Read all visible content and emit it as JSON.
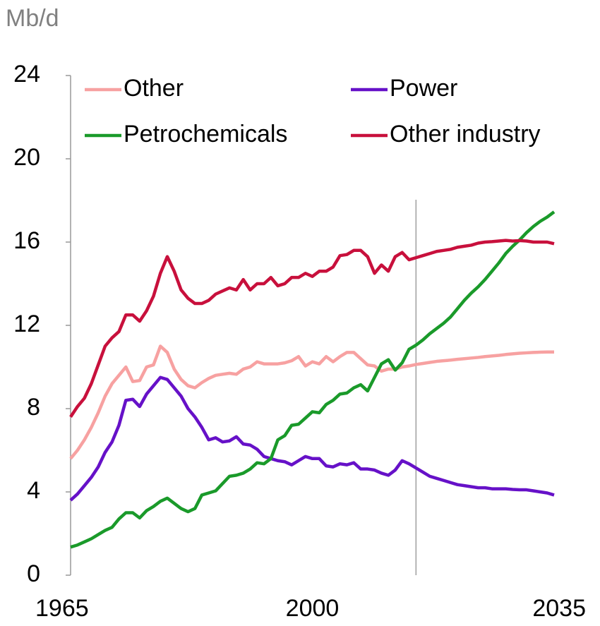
{
  "chart_data": {
    "type": "line",
    "ylabel": "Mb/d",
    "x": [
      1965,
      1966,
      1967,
      1968,
      1969,
      1970,
      1971,
      1972,
      1973,
      1974,
      1975,
      1976,
      1977,
      1978,
      1979,
      1980,
      1981,
      1982,
      1983,
      1984,
      1985,
      1986,
      1987,
      1988,
      1989,
      1990,
      1991,
      1992,
      1993,
      1994,
      1995,
      1996,
      1997,
      1998,
      1999,
      2000,
      2001,
      2002,
      2003,
      2004,
      2005,
      2006,
      2007,
      2008,
      2009,
      2010,
      2011,
      2012,
      2013,
      2014,
      2015,
      2016,
      2017,
      2018,
      2019,
      2020,
      2021,
      2022,
      2023,
      2024,
      2025,
      2026,
      2027,
      2028,
      2029,
      2030,
      2031,
      2032,
      2033,
      2034,
      2035
    ],
    "xlim": [
      1965,
      2035
    ],
    "xticks": [
      1965,
      2000,
      2035
    ],
    "ylim": [
      0,
      24
    ],
    "yticks": [
      0,
      4,
      8,
      12,
      16,
      20,
      24
    ],
    "forecast_start": 2015,
    "legend": "top",
    "series": [
      {
        "name": "Other",
        "color": "#f7a1a1",
        "values": [
          5.6,
          6.0,
          6.5,
          7.1,
          7.8,
          8.6,
          9.2,
          9.6,
          10.0,
          9.3,
          9.35,
          10.0,
          10.1,
          11.0,
          10.7,
          9.9,
          9.4,
          9.1,
          9.0,
          9.25,
          9.45,
          9.6,
          9.65,
          9.7,
          9.65,
          9.9,
          10.0,
          10.25,
          10.15,
          10.15,
          10.15,
          10.2,
          10.3,
          10.5,
          10.05,
          10.25,
          10.15,
          10.5,
          10.25,
          10.5,
          10.7,
          10.7,
          10.4,
          10.1,
          10.05,
          9.8,
          9.9,
          9.9,
          10.0,
          10.05,
          10.12,
          10.17,
          10.22,
          10.27,
          10.3,
          10.33,
          10.37,
          10.4,
          10.43,
          10.46,
          10.5,
          10.53,
          10.56,
          10.6,
          10.63,
          10.66,
          10.68,
          10.7,
          10.71,
          10.72,
          10.72
        ]
      },
      {
        "name": "Power",
        "color": "#6611c8",
        "values": [
          3.6,
          3.9,
          4.3,
          4.7,
          5.2,
          5.9,
          6.4,
          7.2,
          8.4,
          8.45,
          8.1,
          8.7,
          9.1,
          9.5,
          9.4,
          9.0,
          8.6,
          8.0,
          7.6,
          7.1,
          6.5,
          6.6,
          6.4,
          6.45,
          6.65,
          6.3,
          6.25,
          6.05,
          5.7,
          5.6,
          5.5,
          5.45,
          5.3,
          5.5,
          5.7,
          5.6,
          5.6,
          5.25,
          5.2,
          5.35,
          5.3,
          5.4,
          5.1,
          5.1,
          5.05,
          4.9,
          4.8,
          5.05,
          5.5,
          5.35,
          5.15,
          4.95,
          4.75,
          4.65,
          4.55,
          4.45,
          4.35,
          4.3,
          4.25,
          4.2,
          4.2,
          4.15,
          4.15,
          4.15,
          4.12,
          4.1,
          4.1,
          4.05,
          4.0,
          3.95,
          3.85
        ]
      },
      {
        "name": "Petrochemicals",
        "color": "#1a9a2a",
        "values": [
          1.35,
          1.45,
          1.6,
          1.75,
          1.95,
          2.15,
          2.3,
          2.7,
          3.0,
          3.0,
          2.75,
          3.1,
          3.3,
          3.55,
          3.7,
          3.45,
          3.2,
          3.05,
          3.2,
          3.85,
          3.95,
          4.05,
          4.4,
          4.75,
          4.8,
          4.9,
          5.1,
          5.4,
          5.35,
          5.6,
          6.5,
          6.7,
          7.2,
          7.25,
          7.55,
          7.85,
          7.8,
          8.2,
          8.4,
          8.7,
          8.75,
          9.0,
          9.15,
          8.85,
          9.5,
          10.15,
          10.35,
          9.85,
          10.2,
          10.85,
          11.05,
          11.3,
          11.6,
          11.85,
          12.1,
          12.4,
          12.8,
          13.2,
          13.55,
          13.85,
          14.2,
          14.6,
          15.0,
          15.45,
          15.8,
          16.1,
          16.45,
          16.75,
          17.0,
          17.2,
          17.45
        ]
      },
      {
        "name": "Other industry",
        "color": "#c8103c",
        "values": [
          7.6,
          8.1,
          8.5,
          9.2,
          10.1,
          11.0,
          11.4,
          11.7,
          12.5,
          12.5,
          12.2,
          12.7,
          13.4,
          14.5,
          15.3,
          14.6,
          13.7,
          13.3,
          13.05,
          13.05,
          13.2,
          13.5,
          13.65,
          13.8,
          13.7,
          14.2,
          13.7,
          14.0,
          14.0,
          14.3,
          13.9,
          14.0,
          14.3,
          14.3,
          14.5,
          14.35,
          14.6,
          14.6,
          14.8,
          15.35,
          15.4,
          15.6,
          15.6,
          15.3,
          14.5,
          14.9,
          14.6,
          15.3,
          15.5,
          15.15,
          15.25,
          15.35,
          15.45,
          15.55,
          15.6,
          15.65,
          15.75,
          15.8,
          15.85,
          15.95,
          16.0,
          16.02,
          16.05,
          16.08,
          16.05,
          16.07,
          16.05,
          16.0,
          16.0,
          16.0,
          15.92
        ]
      }
    ]
  }
}
